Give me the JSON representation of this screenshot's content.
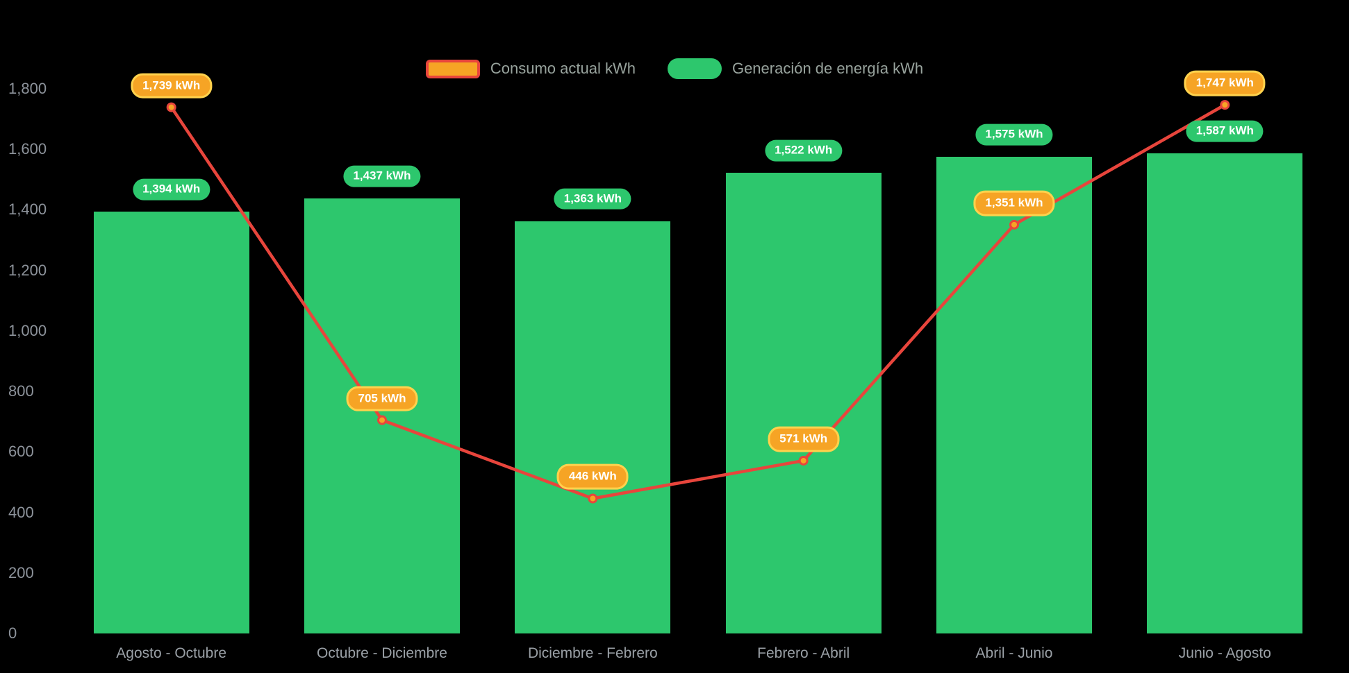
{
  "chart_data": {
    "type": "bar+line",
    "title": "",
    "categories": [
      "Agosto - Octubre",
      "Octubre - Diciembre",
      "Diciembre - Febrero",
      "Febrero - Abril",
      "Abril - Junio",
      "Junio - Agosto"
    ],
    "series": [
      {
        "name": "Consumo actual kWh",
        "type": "line",
        "values": [
          1739,
          705,
          446,
          571,
          1351,
          1747
        ],
        "labels": [
          "1,739 kWh",
          "705 kWh",
          "446 kWh",
          "571 kWh",
          "1,351 kWh",
          "1,747 kWh"
        ]
      },
      {
        "name": "Generación de energía kWh",
        "type": "bar",
        "values": [
          1394,
          1437,
          1363,
          1522,
          1575,
          1587
        ],
        "labels": [
          "1,394 kWh",
          "1,437 kWh",
          "1,363 kWh",
          "1,522 kWh",
          "1,575 kWh",
          "1,587 kWh"
        ]
      }
    ],
    "y_axis": {
      "min": 0,
      "max": 1800,
      "step": 200,
      "tick_labels": [
        "0",
        "200",
        "400",
        "600",
        "800",
        "1,000",
        "1,200",
        "1,400",
        "1,600",
        "1,800"
      ]
    },
    "legend": [
      {
        "label": "Consumo actual kWh",
        "swatch": "line"
      },
      {
        "label": "Generación de energía kWh",
        "swatch": "bar"
      }
    ],
    "legend_position": "top-center",
    "grid": false,
    "background": "#000000",
    "colors": {
      "bar_green": "#2dc76d",
      "line_red": "#e8453c",
      "marker_orange": "#f6a425",
      "orange_pill_border": "#ffd24d",
      "axis_text": "#8d939b",
      "xaxis_text": "#9aa0a6",
      "legend_text": "#98a39d"
    }
  }
}
